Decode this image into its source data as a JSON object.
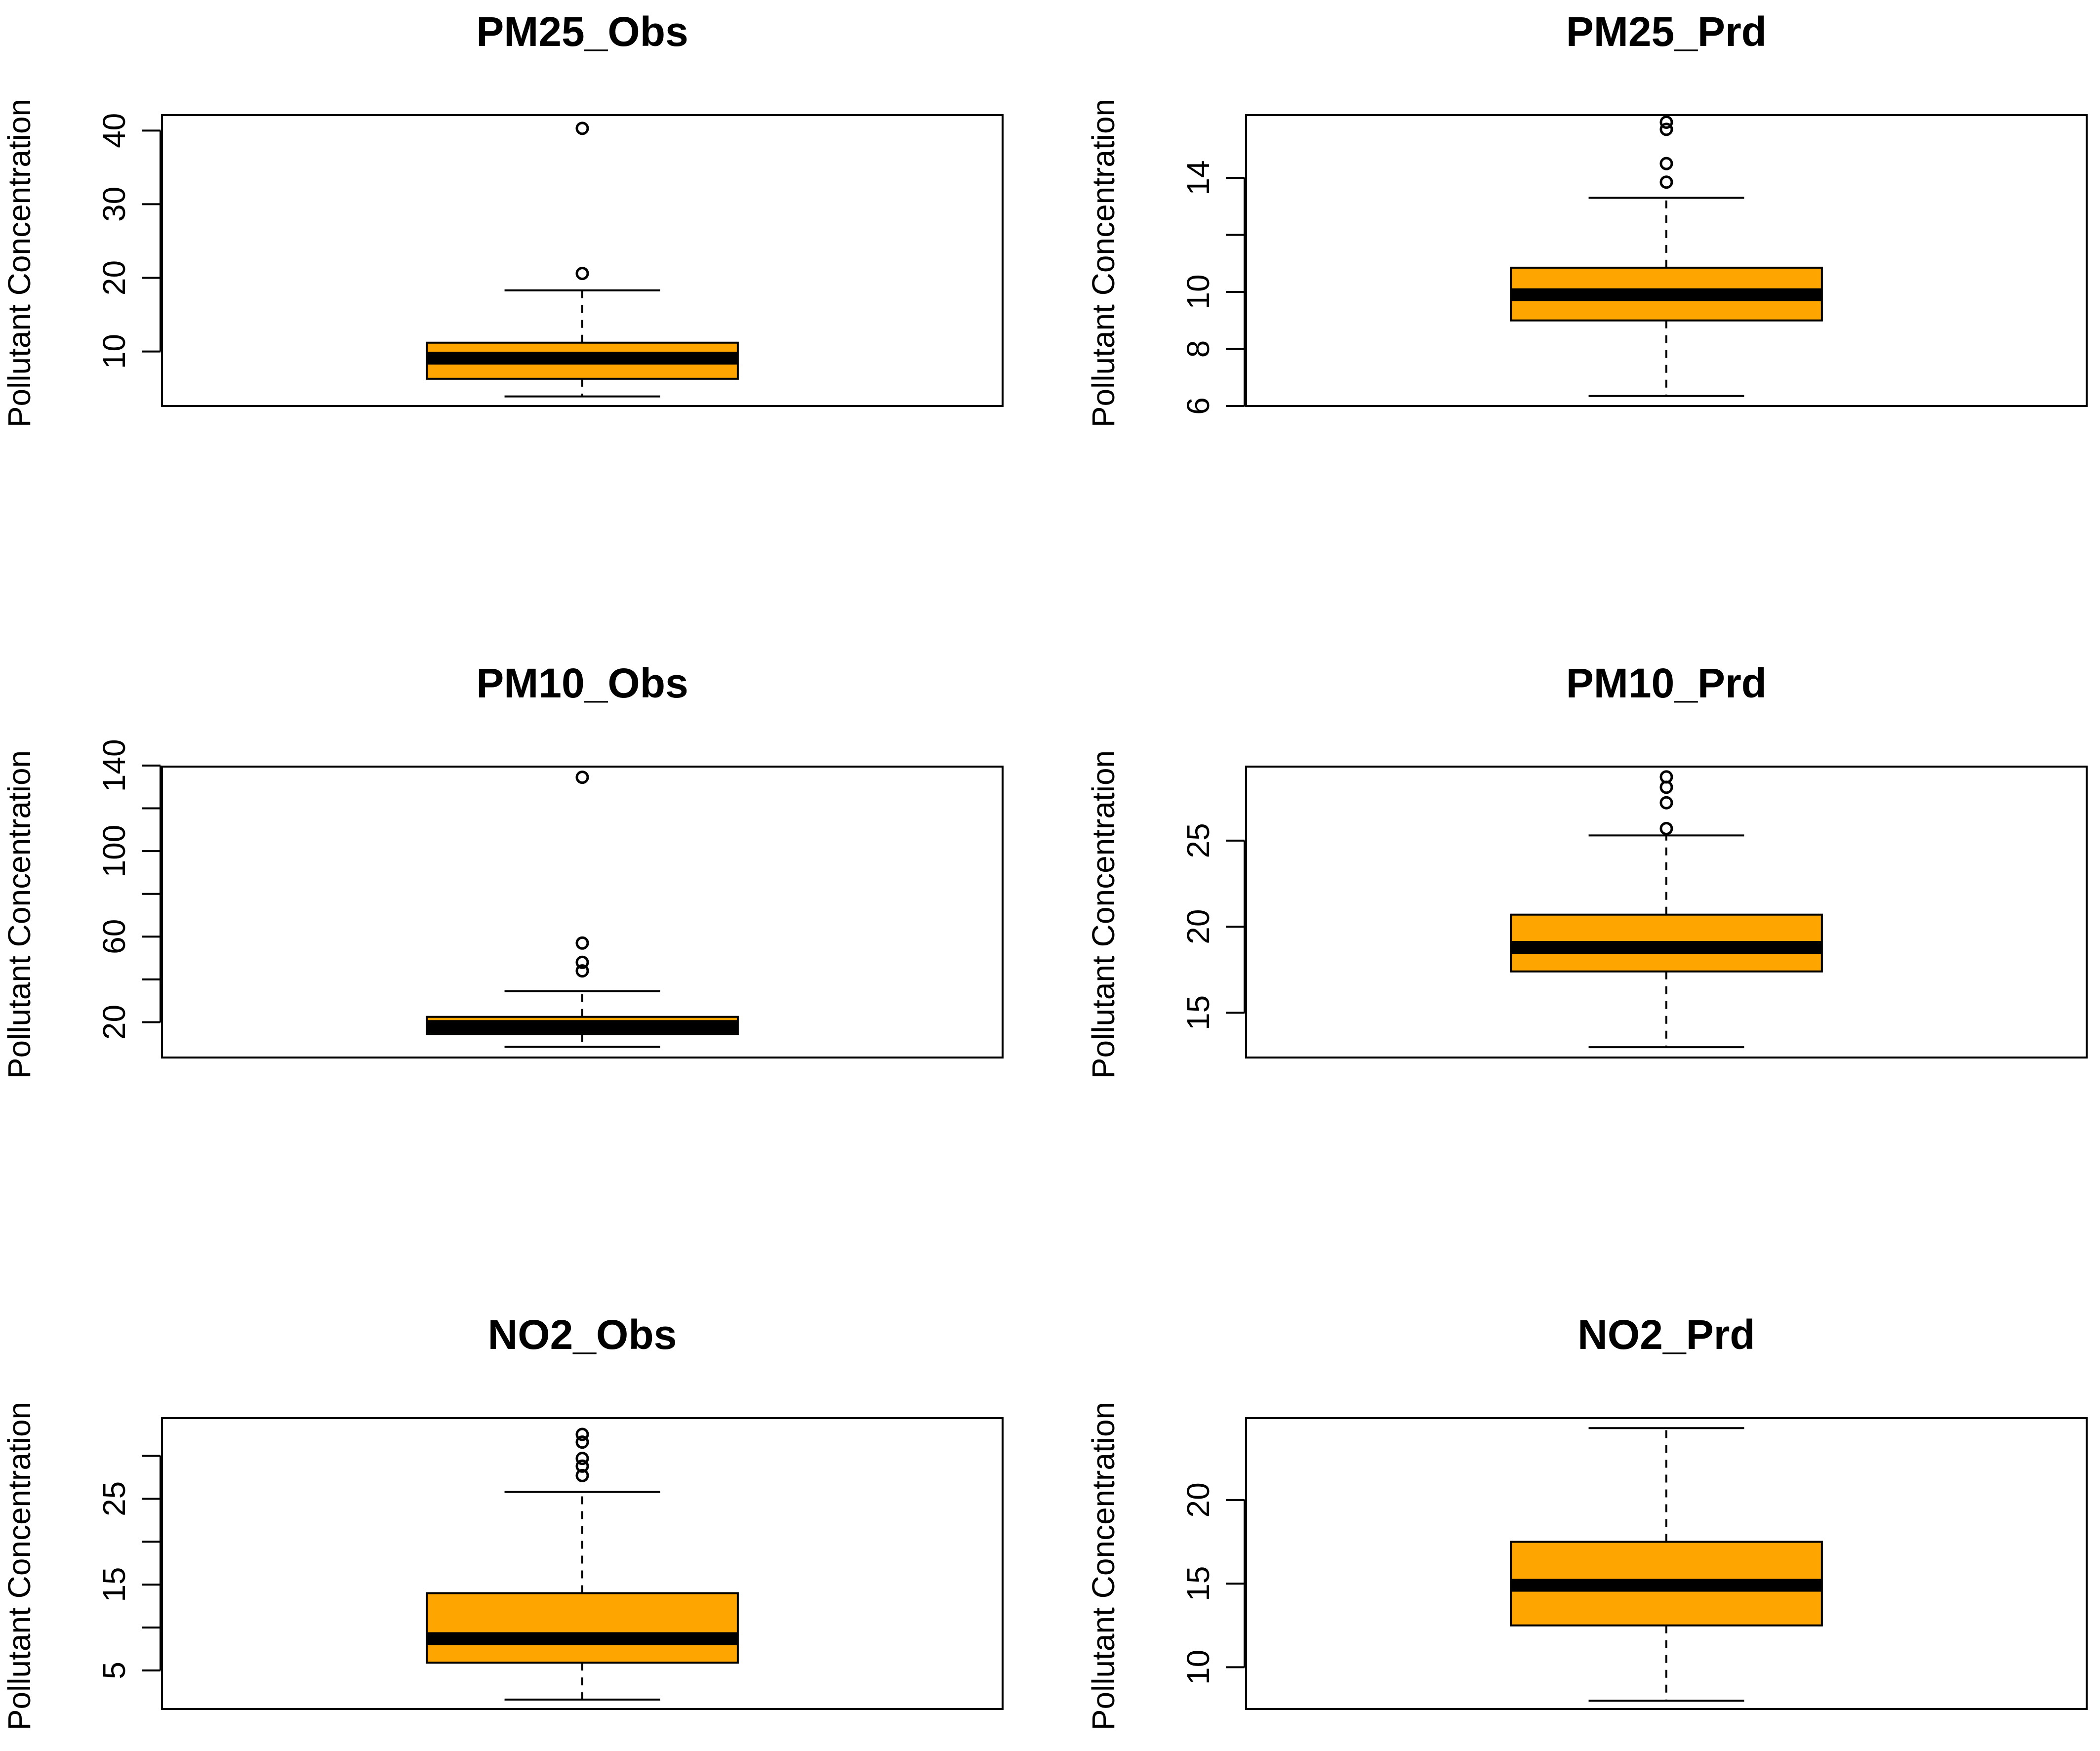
{
  "figure": {
    "box_fill": "#FFA500",
    "line_color": "#000000"
  },
  "chart_data": [
    {
      "type": "box",
      "title": "PM25_Obs",
      "ylabel": "Pollutant Concentration",
      "ylim": [
        2.6,
        42.1
      ],
      "yticks": [
        10,
        20,
        30,
        40
      ],
      "tick_labels": [
        "10",
        "20",
        "30",
        "40"
      ],
      "box": {
        "whisker_low": 3.9,
        "q1": 6.3,
        "median": 9.1,
        "q3": 11.2,
        "whisker_high": 18.3
      },
      "outliers": [
        20.6,
        40.3
      ]
    },
    {
      "type": "box",
      "title": "PM25_Prd",
      "ylabel": "Pollutant Concentration",
      "ylim": [
        6.0,
        16.2
      ],
      "yticks": [
        6,
        8,
        10,
        12,
        14
      ],
      "tick_labels": [
        "6",
        "8",
        "10",
        "",
        "14"
      ],
      "box": {
        "whisker_low": 6.35,
        "q1": 9.0,
        "median": 9.9,
        "q3": 10.85,
        "whisker_high": 13.3
      },
      "outliers": [
        13.85,
        14.5,
        15.7,
        15.95
      ]
    },
    {
      "type": "box",
      "title": "PM10_Obs",
      "ylabel": "Pollutant Concentration",
      "ylim": [
        3.5,
        139.5
      ],
      "yticks": [
        20,
        40,
        60,
        80,
        100,
        120,
        140
      ],
      "tick_labels": [
        "20",
        "",
        "60",
        "",
        "100",
        "",
        "140"
      ],
      "box": {
        "whisker_low": 8.5,
        "q1": 14.5,
        "median": 18.0,
        "q3": 22.5,
        "whisker_high": 34.5
      },
      "outliers": [
        44,
        48,
        57,
        134.5
      ]
    },
    {
      "type": "box",
      "title": "PM10_Prd",
      "ylabel": "Pollutant Concentration",
      "ylim": [
        12.4,
        29.3
      ],
      "yticks": [
        15,
        20,
        25
      ],
      "tick_labels": [
        "15",
        "20",
        "25"
      ],
      "box": {
        "whisker_low": 13.0,
        "q1": 17.4,
        "median": 18.8,
        "q3": 20.7,
        "whisker_high": 25.3
      },
      "outliers": [
        25.7,
        27.2,
        28.1,
        28.7
      ]
    },
    {
      "type": "box",
      "title": "NO2_Obs",
      "ylabel": "Pollutant Concentration",
      "ylim": [
        0.5,
        34.4
      ],
      "yticks": [
        5,
        10,
        15,
        20,
        25,
        30
      ],
      "tick_labels": [
        "5",
        "",
        "15",
        "",
        "25",
        ""
      ],
      "box": {
        "whisker_low": 1.6,
        "q1": 5.9,
        "median": 8.7,
        "q3": 14.0,
        "whisker_high": 25.8
      },
      "outliers": [
        27.7,
        28.8,
        29.7,
        31.6,
        32.5
      ]
    },
    {
      "type": "box",
      "title": "NO2_Prd",
      "ylabel": "Pollutant Concentration",
      "ylim": [
        7.5,
        24.9
      ],
      "yticks": [
        10,
        15,
        20
      ],
      "tick_labels": [
        "10",
        "15",
        "20"
      ],
      "box": {
        "whisker_low": 8.0,
        "q1": 12.5,
        "median": 14.9,
        "q3": 17.5,
        "whisker_high": 24.3
      },
      "outliers": []
    }
  ]
}
